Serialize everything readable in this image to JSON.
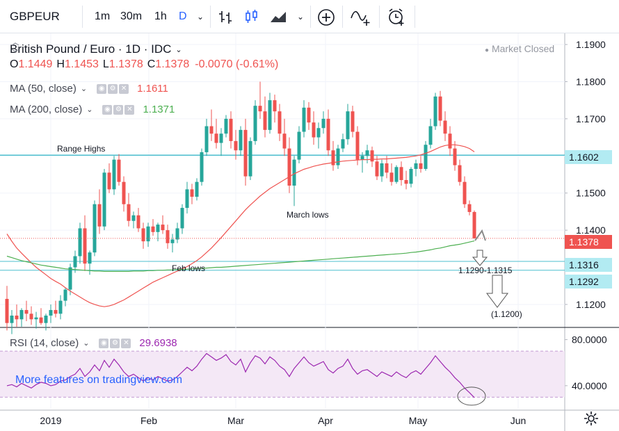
{
  "toolbar": {
    "symbol": "GBPEUR",
    "intervals": [
      "1m",
      "30m",
      "1h",
      "D"
    ],
    "active_interval": "D",
    "icons": [
      "chevron-down-icon",
      "bar-chart-icon",
      "candles-icon",
      "area-chart-icon",
      "chevron-down-icon",
      "add-indicator-icon",
      "compare-icon",
      "alert-icon"
    ]
  },
  "header": {
    "title": "British Pound / Euro · 1D · IDC",
    "status": "Market Closed",
    "ohlc": {
      "o_label": "O",
      "o": "1.1449",
      "h_label": "H",
      "h": "1.1453",
      "l_label": "L",
      "l": "1.1378",
      "c_label": "C",
      "c": "1.1378",
      "change": "-0.0070 (-0.61%)"
    }
  },
  "indicators": [
    {
      "label": "MA (50, close)",
      "value": "1.1611",
      "color": "#ef5350"
    },
    {
      "label": "MA (200, close)",
      "value": "1.1371",
      "color": "#4caf50"
    }
  ],
  "rsi": {
    "label": "RSI (14, close)",
    "value": "29.6938",
    "color": "#9c27b0"
  },
  "watermark": "More features on tradingview.com",
  "price_tags": [
    {
      "text": "1.1602",
      "bg": "#b2ebf2"
    },
    {
      "text": "1.1378",
      "bg": "#ef5350",
      "fg": "#ffffff"
    },
    {
      "text": "1.1316",
      "bg": "#b2ebf2"
    },
    {
      "text": "1.1292",
      "bg": "#b2ebf2"
    }
  ],
  "annotations": {
    "range_highs": "Range Highs",
    "march_lows": "March lows",
    "feb_lows": "Feb lows",
    "target_zone": "1.1290-1.1315",
    "target_low": "(1.1200)"
  },
  "chart_data": {
    "type": "candlestick",
    "title": "British Pound / Euro · 1D · IDC",
    "ylim": [
      1.114,
      1.193
    ],
    "y_ticks": [
      "1.1900",
      "1.1800",
      "1.1700",
      "1.1600",
      "1.1500",
      "1.1400",
      "1.1200"
    ],
    "x_ticks": [
      "2019",
      "Feb",
      "Mar",
      "Apr",
      "May",
      "Jun"
    ],
    "horizontal_lines": [
      {
        "price": 1.1602,
        "label": "Range Highs"
      },
      {
        "price": 1.1316
      },
      {
        "price": 1.1292
      }
    ],
    "candles": [
      [
        1.1215,
        1.125,
        1.113,
        1.115
      ],
      [
        1.115,
        1.1185,
        1.112,
        1.117
      ],
      [
        1.117,
        1.12,
        1.114,
        1.116
      ],
      [
        1.116,
        1.119,
        1.114,
        1.1185
      ],
      [
        1.1185,
        1.121,
        1.1155,
        1.1175
      ],
      [
        1.1175,
        1.1195,
        1.1145,
        1.116
      ],
      [
        1.116,
        1.118,
        1.1135,
        1.1165
      ],
      [
        1.1165,
        1.119,
        1.1145,
        1.115
      ],
      [
        1.115,
        1.1175,
        1.113,
        1.117
      ],
      [
        1.117,
        1.12,
        1.115,
        1.1185
      ],
      [
        1.1185,
        1.121,
        1.1165,
        1.1175
      ],
      [
        1.1175,
        1.1225,
        1.116,
        1.121
      ],
      [
        1.121,
        1.1245,
        1.1195,
        1.124
      ],
      [
        1.124,
        1.131,
        1.1225,
        1.13
      ],
      [
        1.13,
        1.1345,
        1.1285,
        1.133
      ],
      [
        1.133,
        1.142,
        1.131,
        1.1405
      ],
      [
        1.1405,
        1.144,
        1.129,
        1.131
      ],
      [
        1.131,
        1.1345,
        1.128,
        1.134
      ],
      [
        1.134,
        1.148,
        1.133,
        1.147
      ],
      [
        1.147,
        1.151,
        1.139,
        1.141
      ],
      [
        1.141,
        1.1565,
        1.14,
        1.1555
      ],
      [
        1.1555,
        1.158,
        1.15,
        1.151
      ],
      [
        1.151,
        1.16,
        1.1495,
        1.159
      ],
      [
        1.159,
        1.1605,
        1.152,
        1.153
      ],
      [
        1.153,
        1.1545,
        1.145,
        1.147
      ],
      [
        1.147,
        1.15,
        1.141,
        1.1425
      ],
      [
        1.1425,
        1.145,
        1.1405,
        1.144
      ],
      [
        1.144,
        1.146,
        1.1395,
        1.1405
      ],
      [
        1.1405,
        1.142,
        1.135,
        1.137
      ],
      [
        1.137,
        1.142,
        1.1355,
        1.141
      ],
      [
        1.141,
        1.143,
        1.1385,
        1.1395
      ],
      [
        1.1395,
        1.142,
        1.137,
        1.1415
      ],
      [
        1.1415,
        1.144,
        1.139,
        1.14
      ],
      [
        1.14,
        1.1415,
        1.135,
        1.1365
      ],
      [
        1.1365,
        1.139,
        1.134,
        1.1375
      ],
      [
        1.1375,
        1.142,
        1.1365,
        1.1405
      ],
      [
        1.1405,
        1.147,
        1.139,
        1.146
      ],
      [
        1.146,
        1.153,
        1.1445,
        1.151
      ],
      [
        1.151,
        1.1525,
        1.147,
        1.149
      ],
      [
        1.149,
        1.154,
        1.148,
        1.153
      ],
      [
        1.153,
        1.162,
        1.152,
        1.161
      ],
      [
        1.161,
        1.17,
        1.16,
        1.168
      ],
      [
        1.168,
        1.1725,
        1.164,
        1.166
      ],
      [
        1.166,
        1.17,
        1.162,
        1.1635
      ],
      [
        1.1635,
        1.1675,
        1.16,
        1.166
      ],
      [
        1.166,
        1.171,
        1.165,
        1.17
      ],
      [
        1.17,
        1.172,
        1.162,
        1.164
      ],
      [
        1.164,
        1.167,
        1.159,
        1.1615
      ],
      [
        1.1615,
        1.168,
        1.16,
        1.167
      ],
      [
        1.167,
        1.17,
        1.152,
        1.1545
      ],
      [
        1.1545,
        1.165,
        1.1535,
        1.164
      ],
      [
        1.164,
        1.175,
        1.163,
        1.1735
      ],
      [
        1.1735,
        1.18,
        1.17,
        1.172
      ],
      [
        1.172,
        1.176,
        1.165,
        1.167
      ],
      [
        1.167,
        1.177,
        1.166,
        1.175
      ],
      [
        1.175,
        1.1765,
        1.169,
        1.172
      ],
      [
        1.172,
        1.174,
        1.164,
        1.166
      ],
      [
        1.166,
        1.17,
        1.16,
        1.162
      ],
      [
        1.162,
        1.165,
        1.15,
        1.152
      ],
      [
        1.152,
        1.16,
        1.1465,
        1.159
      ],
      [
        1.159,
        1.168,
        1.158,
        1.1665
      ],
      [
        1.1665,
        1.175,
        1.165,
        1.173
      ],
      [
        1.173,
        1.1745,
        1.167,
        1.169
      ],
      [
        1.169,
        1.172,
        1.163,
        1.165
      ],
      [
        1.165,
        1.169,
        1.162,
        1.1675
      ],
      [
        1.1675,
        1.172,
        1.166,
        1.17
      ],
      [
        1.17,
        1.1725,
        1.16,
        1.1615
      ],
      [
        1.1615,
        1.164,
        1.156,
        1.1575
      ],
      [
        1.1575,
        1.163,
        1.1565,
        1.162
      ],
      [
        1.162,
        1.166,
        1.161,
        1.1645
      ],
      [
        1.1645,
        1.174,
        1.163,
        1.172
      ],
      [
        1.172,
        1.1735,
        1.165,
        1.1665
      ],
      [
        1.1665,
        1.168,
        1.1575,
        1.159
      ],
      [
        1.159,
        1.161,
        1.1555,
        1.16
      ],
      [
        1.16,
        1.163,
        1.158,
        1.1615
      ],
      [
        1.1615,
        1.1625,
        1.157,
        1.1585
      ],
      [
        1.1585,
        1.16,
        1.1535,
        1.1545
      ],
      [
        1.1545,
        1.159,
        1.153,
        1.158
      ],
      [
        1.158,
        1.16,
        1.154,
        1.1555
      ],
      [
        1.1555,
        1.158,
        1.152,
        1.153
      ],
      [
        1.153,
        1.1575,
        1.1525,
        1.157
      ],
      [
        1.157,
        1.1585,
        1.152,
        1.1535
      ],
      [
        1.1535,
        1.156,
        1.151,
        1.1525
      ],
      [
        1.1525,
        1.157,
        1.1515,
        1.1565
      ],
      [
        1.1565,
        1.159,
        1.1545,
        1.158
      ],
      [
        1.158,
        1.16,
        1.1555,
        1.1565
      ],
      [
        1.1565,
        1.164,
        1.156,
        1.163
      ],
      [
        1.163,
        1.17,
        1.162,
        1.168
      ],
      [
        1.168,
        1.177,
        1.167,
        1.176
      ],
      [
        1.176,
        1.1775,
        1.168,
        1.1695
      ],
      [
        1.1695,
        1.172,
        1.164,
        1.166
      ],
      [
        1.166,
        1.168,
        1.16,
        1.162
      ],
      [
        1.162,
        1.164,
        1.156,
        1.1575
      ],
      [
        1.1575,
        1.159,
        1.152,
        1.153
      ],
      [
        1.153,
        1.1545,
        1.146,
        1.147
      ],
      [
        1.147,
        1.148,
        1.144,
        1.1449
      ],
      [
        1.1449,
        1.1453,
        1.1378,
        1.1378
      ]
    ],
    "ma50": [
      1.139,
      1.137,
      1.1352,
      1.1338,
      1.1325,
      1.1312,
      1.13,
      1.129,
      1.128,
      1.127,
      1.1262,
      1.1255,
      1.1245,
      1.1236,
      1.1228,
      1.122,
      1.1212,
      1.1205,
      1.12,
      1.1196,
      1.1194,
      1.1196,
      1.12,
      1.1206,
      1.1212,
      1.122,
      1.1228,
      1.1236,
      1.1244,
      1.1252,
      1.126,
      1.1266,
      1.1272,
      1.1278,
      1.1284,
      1.129,
      1.1296,
      1.1302,
      1.131,
      1.1318,
      1.1328,
      1.134,
      1.1352,
      1.1366,
      1.138,
      1.1395,
      1.141,
      1.1425,
      1.144,
      1.1455,
      1.1468,
      1.148,
      1.1492,
      1.1502,
      1.1512,
      1.152,
      1.1528,
      1.1536,
      1.1544,
      1.1552,
      1.1558,
      1.1564,
      1.1568,
      1.1572,
      1.1575,
      1.1578,
      1.158,
      1.1582,
      1.1584,
      1.1586,
      1.1587,
      1.1588,
      1.1589,
      1.159,
      1.159,
      1.1591,
      1.1591,
      1.1592,
      1.1592,
      1.1593,
      1.1594,
      1.1595,
      1.1596,
      1.1598,
      1.16,
      1.1603,
      1.1607,
      1.1612,
      1.1618,
      1.1624,
      1.1628,
      1.163,
      1.163,
      1.1628,
      1.1625,
      1.162,
      1.1611
    ],
    "ma200": [
      1.133,
      1.1326,
      1.1322,
      1.1318,
      1.1315,
      1.1312,
      1.1309,
      1.1306,
      1.1304,
      1.1302,
      1.13,
      1.1298,
      1.1296,
      1.1295,
      1.1294,
      1.1293,
      1.1292,
      1.1291,
      1.129,
      1.129,
      1.1289,
      1.1289,
      1.1289,
      1.1289,
      1.1289,
      1.1289,
      1.129,
      1.129,
      1.129,
      1.1291,
      1.1291,
      1.1292,
      1.1292,
      1.1293,
      1.1293,
      1.1294,
      1.1294,
      1.1295,
      1.1296,
      1.1297,
      1.1297,
      1.1298,
      1.1299,
      1.13,
      1.13,
      1.1301,
      1.1302,
      1.1303,
      1.1304,
      1.1305,
      1.1306,
      1.1307,
      1.1308,
      1.1309,
      1.131,
      1.1311,
      1.1312,
      1.1313,
      1.1314,
      1.1315,
      1.1316,
      1.1317,
      1.1318,
      1.1319,
      1.132,
      1.1321,
      1.1322,
      1.1323,
      1.1324,
      1.1325,
      1.1326,
      1.1327,
      1.1328,
      1.1329,
      1.133,
      1.1331,
      1.1332,
      1.1333,
      1.1334,
      1.1335,
      1.1336,
      1.1337,
      1.1338,
      1.134,
      1.1341,
      1.1343,
      1.1345,
      1.1347,
      1.135,
      1.1352,
      1.1355,
      1.1358,
      1.136,
      1.1362,
      1.1365,
      1.1368,
      1.1371
    ],
    "rsi_ylim": [
      20,
      90
    ],
    "rsi_ticks": [
      "80.0000",
      "40.0000"
    ],
    "rsi_band": [
      30,
      70
    ],
    "rsi_values": [
      40,
      41,
      39,
      42,
      40,
      38,
      41,
      43,
      42,
      40,
      41,
      44,
      45,
      48,
      50,
      55,
      48,
      52,
      58,
      53,
      62,
      56,
      63,
      58,
      52,
      48,
      50,
      47,
      44,
      47,
      45,
      48,
      46,
      44,
      45,
      48,
      52,
      56,
      53,
      57,
      63,
      68,
      65,
      62,
      64,
      67,
      61,
      58,
      63,
      52,
      60,
      66,
      64,
      59,
      65,
      62,
      57,
      54,
      48,
      55,
      60,
      65,
      60,
      57,
      59,
      61,
      54,
      51,
      55,
      57,
      63,
      55,
      50,
      53,
      54,
      51,
      48,
      52,
      50,
      48,
      52,
      49,
      47,
      51,
      53,
      50,
      55,
      60,
      66,
      61,
      56,
      52,
      47,
      43,
      38,
      34,
      29.7
    ]
  }
}
